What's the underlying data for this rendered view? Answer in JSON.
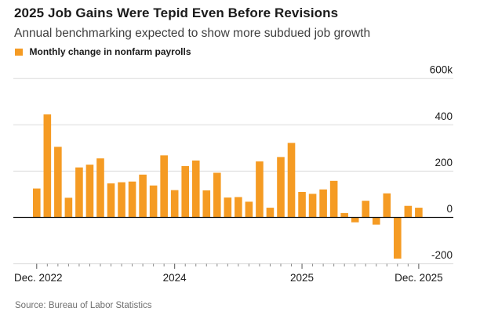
{
  "header": {
    "title": "2025 Job Gains Were Tepid Even Before Revisions",
    "subtitle": "Annual benchmarking expected to show more subdued job growth"
  },
  "legend": {
    "label": "Monthly change in nonfarm payrolls"
  },
  "footer": {
    "source": "Source: Bureau of Labor Statistics"
  },
  "chart_data": {
    "type": "bar",
    "title": "2025 Job Gains Were Tepid Even Before Revisions",
    "subtitle": "Annual benchmarking expected to show more subdued job growth",
    "series_name": "Monthly change in nonfarm payrolls",
    "unit": "thousands of jobs",
    "bar_color": "#F59B23",
    "grid": true,
    "legend_position": "top-left",
    "categories": [
      "Dec 2022",
      "Jan 2023",
      "Feb 2023",
      "Mar 2023",
      "Apr 2023",
      "May 2023",
      "Jun 2023",
      "Jul 2023",
      "Aug 2023",
      "Sep 2023",
      "Oct 2023",
      "Nov 2023",
      "Dec 2023",
      "Jan 2024",
      "Feb 2024",
      "Mar 2024",
      "Apr 2024",
      "May 2024",
      "Jun 2024",
      "Jul 2024",
      "Aug 2024",
      "Sep 2024",
      "Oct 2024",
      "Nov 2024",
      "Dec 2024",
      "Jan 2025",
      "Feb 2025",
      "Mar 2025",
      "Apr 2025",
      "May 2025",
      "Jun 2025",
      "Jul 2025",
      "Aug 2025",
      "Sep 2025",
      "Oct 2025",
      "Nov 2025",
      "Dec 2025"
    ],
    "values": [
      125,
      445,
      305,
      85,
      216,
      228,
      255,
      147,
      152,
      155,
      185,
      138,
      268,
      118,
      222,
      246,
      117,
      193,
      86,
      88,
      68,
      242,
      42,
      261,
      322,
      110,
      102,
      121,
      158,
      19,
      -21,
      72,
      -31,
      104,
      -178,
      50,
      42
    ],
    "y_axis": {
      "ticks": [
        600,
        400,
        200,
        0,
        -200
      ],
      "tick_labels": [
        "600k",
        "400",
        "200",
        "0",
        "-200"
      ],
      "range": [
        -220,
        620
      ]
    },
    "x_axis": {
      "major_tick_labels": [
        "Dec. 2022",
        "2024",
        "2025",
        "Dec. 2025"
      ],
      "major_tick_month_indices": [
        0,
        13,
        25,
        36
      ]
    },
    "baseline": 0,
    "colors": {
      "gridline": "#dcdcdc",
      "zero_line": "#111111",
      "tick": "#8a8a8a",
      "axis_label": "#1a1a1a"
    }
  }
}
